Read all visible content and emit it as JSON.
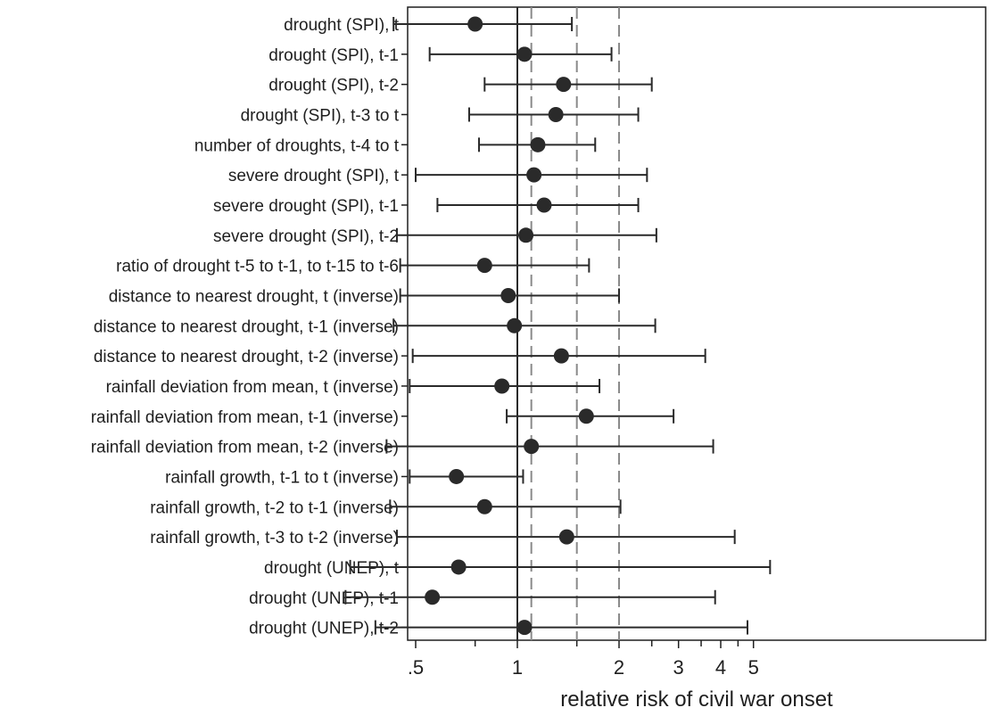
{
  "chart_data": {
    "type": "forest",
    "xlabel": "relative risk of civil war onset",
    "x_scale": "log",
    "xlim": [
      0.25,
      5.7
    ],
    "x_ticks": [
      {
        "value": 0.5,
        "label": ".5"
      },
      {
        "value": 1,
        "label": "1"
      },
      {
        "value": 2,
        "label": "2"
      },
      {
        "value": 3,
        "label": "3"
      },
      {
        "value": 4,
        "label": "4"
      },
      {
        "value": 5,
        "label": "5"
      }
    ],
    "x_minor_ticks": [
      0.75,
      1.5,
      2.5,
      3.5,
      4.5
    ],
    "reference_line": 1,
    "dashed_lines": [
      1.1,
      1.5,
      2
    ],
    "grid": false,
    "rows": [
      {
        "label": "drought (SPI), t",
        "estimate": 0.75,
        "low": 0.43,
        "high": 1.45
      },
      {
        "label": "drought (SPI), t-1",
        "estimate": 1.05,
        "low": 0.55,
        "high": 1.9
      },
      {
        "label": "drought (SPI), t-2",
        "estimate": 1.37,
        "low": 0.8,
        "high": 2.5
      },
      {
        "label": "drought (SPI), t-3 to t",
        "estimate": 1.3,
        "low": 0.72,
        "high": 2.28
      },
      {
        "label": "number of droughts, t-4 to t",
        "estimate": 1.15,
        "low": 0.77,
        "high": 1.7
      },
      {
        "label": "severe drought (SPI), t",
        "estimate": 1.12,
        "low": 0.5,
        "high": 2.42
      },
      {
        "label": "severe drought (SPI), t-1",
        "estimate": 1.2,
        "low": 0.58,
        "high": 2.28
      },
      {
        "label": "severe drought (SPI), t-2",
        "estimate": 1.06,
        "low": 0.44,
        "high": 2.58
      },
      {
        "label": "ratio of drought t-5 to t-1, to t-15 to t-6",
        "estimate": 0.8,
        "low": 0.45,
        "high": 1.63
      },
      {
        "label": "distance to nearest drought, t (inverse)",
        "estimate": 0.94,
        "low": 0.45,
        "high": 2.0
      },
      {
        "label": "distance to nearest drought, t-1 (inverse)",
        "estimate": 0.98,
        "low": 0.43,
        "high": 2.56
      },
      {
        "label": "distance to nearest drought, t-2 (inverse)",
        "estimate": 1.35,
        "low": 0.49,
        "high": 3.6
      },
      {
        "label": "rainfall deviation from mean, t (inverse)",
        "estimate": 0.9,
        "low": 0.48,
        "high": 1.75
      },
      {
        "label": "rainfall deviation from mean, t-1 (inverse)",
        "estimate": 1.6,
        "low": 0.93,
        "high": 2.9
      },
      {
        "label": "rainfall deviation from mean, t-2 (inverse)",
        "estimate": 1.1,
        "low": 0.41,
        "high": 3.8
      },
      {
        "label": "rainfall growth, t-1 to t (inverse)",
        "estimate": 0.66,
        "low": 0.48,
        "high": 1.04
      },
      {
        "label": "rainfall growth, t-2 to t-1 (inverse)",
        "estimate": 0.8,
        "low": 0.42,
        "high": 2.02
      },
      {
        "label": "rainfall growth, t-3 to t-2 (inverse)",
        "estimate": 1.4,
        "low": 0.44,
        "high": 4.4
      },
      {
        "label": "drought (UNEP), t",
        "estimate": 0.67,
        "low": 0.32,
        "high": 5.6
      },
      {
        "label": "drought (UNEP), t-1",
        "estimate": 0.56,
        "low": 0.31,
        "high": 3.85
      },
      {
        "label": "drought (UNEP), t-2",
        "estimate": 1.05,
        "low": 0.38,
        "high": 4.8
      }
    ]
  }
}
